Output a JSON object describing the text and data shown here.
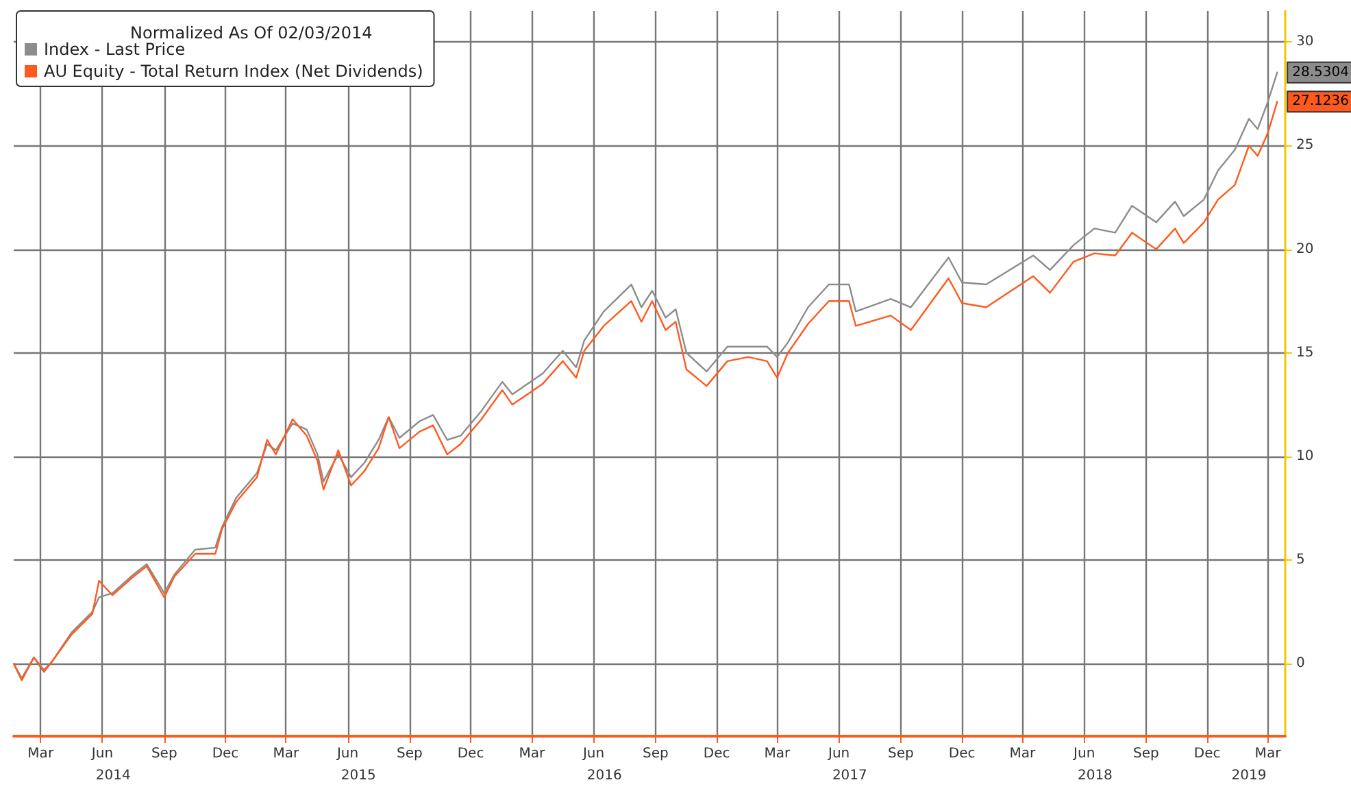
{
  "chart_data": {
    "type": "line",
    "legend_title": "Normalized As Of 02/03/2014",
    "x": [
      "2014-02-03",
      "2014-02-15",
      "2014-03-05",
      "2014-03-20",
      "2014-04-01",
      "2014-04-30",
      "2014-05-31",
      "2014-06-10",
      "2014-06-30",
      "2014-07-31",
      "2014-08-20",
      "2014-09-15",
      "2014-09-30",
      "2014-10-31",
      "2014-11-30",
      "2014-12-10",
      "2014-12-31",
      "2015-01-31",
      "2015-02-15",
      "2015-02-28",
      "2015-03-25",
      "2015-04-15",
      "2015-05-01",
      "2015-05-10",
      "2015-06-01",
      "2015-06-20",
      "2015-07-10",
      "2015-07-31",
      "2015-08-15",
      "2015-08-31",
      "2015-09-30",
      "2015-10-20",
      "2015-11-10",
      "2015-11-30",
      "2015-12-31",
      "2016-01-31",
      "2016-02-15",
      "2016-03-31",
      "2016-04-30",
      "2016-05-20",
      "2016-06-01",
      "2016-06-30",
      "2016-08-10",
      "2016-08-25",
      "2016-09-10",
      "2016-09-30",
      "2016-10-15",
      "2016-10-31",
      "2016-11-30",
      "2016-12-31",
      "2017-01-31",
      "2017-02-28",
      "2017-03-15",
      "2017-03-31",
      "2017-04-30",
      "2017-05-31",
      "2017-06-30",
      "2017-07-10",
      "2017-08-31",
      "2017-09-30",
      "2017-11-25",
      "2017-12-15",
      "2018-01-20",
      "2018-03-31",
      "2018-04-25",
      "2018-05-30",
      "2018-06-30",
      "2018-07-31",
      "2018-08-25",
      "2018-09-30",
      "2018-10-28",
      "2018-11-10",
      "2018-12-10",
      "2018-12-31",
      "2019-01-25",
      "2019-02-15",
      "2019-02-28",
      "2019-03-15",
      "2019-03-29"
    ],
    "series": [
      {
        "name": "Index - Last Price",
        "color": "#8c8c8c",
        "values": [
          0,
          -0.7,
          0.3,
          -0.3,
          0.1,
          1.5,
          2.5,
          3.2,
          3.4,
          4.3,
          4.8,
          3.4,
          4.3,
          5.5,
          5.6,
          6.6,
          8.0,
          9.2,
          10.6,
          10.3,
          11.6,
          11.3,
          10.1,
          8.8,
          10.1,
          9.0,
          9.7,
          10.8,
          11.9,
          10.9,
          11.7,
          12.0,
          10.8,
          11.0,
          12.2,
          13.6,
          13.0,
          14.0,
          15.1,
          14.3,
          15.6,
          17.0,
          18.3,
          17.2,
          18.0,
          16.7,
          17.1,
          15.0,
          14.1,
          15.3,
          15.3,
          15.3,
          14.8,
          15.5,
          17.2,
          18.3,
          18.3,
          17.0,
          17.6,
          17.2,
          19.6,
          18.4,
          18.3,
          19.7,
          19.0,
          20.2,
          21.0,
          20.8,
          22.1,
          21.3,
          22.3,
          21.6,
          22.4,
          23.8,
          24.8,
          26.3,
          25.8,
          27.1,
          28.5304
        ],
        "value_labels": [
          null,
          null,
          null,
          null,
          null,
          null,
          null,
          null,
          null,
          null,
          null,
          null,
          null,
          null,
          null,
          null,
          null,
          null,
          null,
          null,
          null,
          null,
          null,
          null,
          null,
          null,
          null,
          null,
          null,
          null,
          null,
          null,
          null,
          null,
          null,
          null,
          null,
          null,
          null,
          null,
          null,
          null,
          null,
          null,
          null,
          null,
          null,
          null,
          null,
          null,
          null,
          null,
          null,
          null,
          null,
          null,
          null,
          null,
          null,
          null,
          null,
          null,
          null,
          null,
          null,
          null,
          null,
          null,
          null,
          null,
          null,
          null,
          null,
          null,
          null,
          null,
          null,
          null,
          "28.5304"
        ]
      },
      {
        "name": "AU Equity - Total Return Index (Net Dividends)",
        "color": "#ff5a1e",
        "values": [
          0,
          -0.8,
          0.3,
          -0.4,
          0.1,
          1.4,
          2.4,
          4.0,
          3.3,
          4.2,
          4.7,
          3.2,
          4.2,
          5.3,
          5.3,
          6.5,
          7.8,
          9.0,
          10.8,
          10.1,
          11.8,
          11.0,
          9.8,
          8.4,
          10.3,
          8.6,
          9.3,
          10.4,
          11.9,
          10.4,
          11.2,
          11.5,
          10.1,
          10.6,
          11.8,
          13.2,
          12.5,
          13.5,
          14.6,
          13.8,
          15.1,
          16.3,
          17.5,
          16.5,
          17.5,
          16.1,
          16.5,
          14.2,
          13.4,
          14.6,
          14.8,
          14.6,
          13.8,
          15.0,
          16.4,
          17.5,
          17.5,
          16.3,
          16.8,
          16.1,
          18.6,
          17.4,
          17.2,
          18.7,
          17.9,
          19.4,
          19.8,
          19.7,
          20.8,
          20.0,
          21.0,
          20.3,
          21.3,
          22.4,
          23.1,
          25.0,
          24.5,
          25.6,
          27.1236
        ],
        "value_labels": [
          null,
          null,
          null,
          null,
          null,
          null,
          null,
          null,
          null,
          null,
          null,
          null,
          null,
          null,
          null,
          null,
          null,
          null,
          null,
          null,
          null,
          null,
          null,
          null,
          null,
          null,
          null,
          null,
          null,
          null,
          null,
          null,
          null,
          null,
          null,
          null,
          null,
          null,
          null,
          null,
          null,
          null,
          null,
          null,
          null,
          null,
          null,
          null,
          null,
          null,
          null,
          null,
          null,
          null,
          null,
          null,
          null,
          null,
          null,
          null,
          null,
          null,
          null,
          null,
          null,
          null,
          null,
          null,
          null,
          null,
          null,
          null,
          null,
          null,
          null,
          null,
          null,
          null,
          "27.1236"
        ]
      }
    ],
    "xlim": [
      "2014-02-03",
      "2019-04-10"
    ],
    "xticks": [
      {
        "value": "2014-03-15",
        "label": "Mar"
      },
      {
        "value": "2014-06-15",
        "label": "Jun"
      },
      {
        "value": "2014-09-15",
        "label": "Sep"
      },
      {
        "value": "2014-12-15",
        "label": "Dec"
      },
      {
        "value": "2015-03-15",
        "label": "Mar"
      },
      {
        "value": "2015-06-15",
        "label": "Jun"
      },
      {
        "value": "2015-09-15",
        "label": "Sep"
      },
      {
        "value": "2015-12-15",
        "label": "Dec"
      },
      {
        "value": "2016-03-15",
        "label": "Mar"
      },
      {
        "value": "2016-06-15",
        "label": "Jun"
      },
      {
        "value": "2016-09-15",
        "label": "Sep"
      },
      {
        "value": "2016-12-15",
        "label": "Dec"
      },
      {
        "value": "2017-03-15",
        "label": "Mar"
      },
      {
        "value": "2017-06-15",
        "label": "Jun"
      },
      {
        "value": "2017-09-15",
        "label": "Sep"
      },
      {
        "value": "2017-12-15",
        "label": "Dec"
      },
      {
        "value": "2018-03-15",
        "label": "Mar"
      },
      {
        "value": "2018-06-15",
        "label": "Jun"
      },
      {
        "value": "2018-09-15",
        "label": "Sep"
      },
      {
        "value": "2018-12-15",
        "label": "Dec"
      },
      {
        "value": "2019-03-15",
        "label": "Mar"
      }
    ],
    "x2lim": [
      "2014-02-03",
      "2019-04-10"
    ],
    "x2ticks": [
      {
        "value": "2014-07-01",
        "label": "2014"
      },
      {
        "value": "2015-07-01",
        "label": "2015"
      },
      {
        "value": "2016-07-01",
        "label": "2016"
      },
      {
        "value": "2017-07-01",
        "label": "2017"
      },
      {
        "value": "2018-07-01",
        "label": "2018"
      },
      {
        "value": "2019-02-15",
        "label": "2019"
      }
    ],
    "ylim": [
      -3.5,
      31.5
    ],
    "yticks": [
      0,
      5,
      10,
      15,
      20,
      25,
      30
    ],
    "grid": true,
    "legend": "top left",
    "marker": "none",
    "line_style": "solid"
  }
}
